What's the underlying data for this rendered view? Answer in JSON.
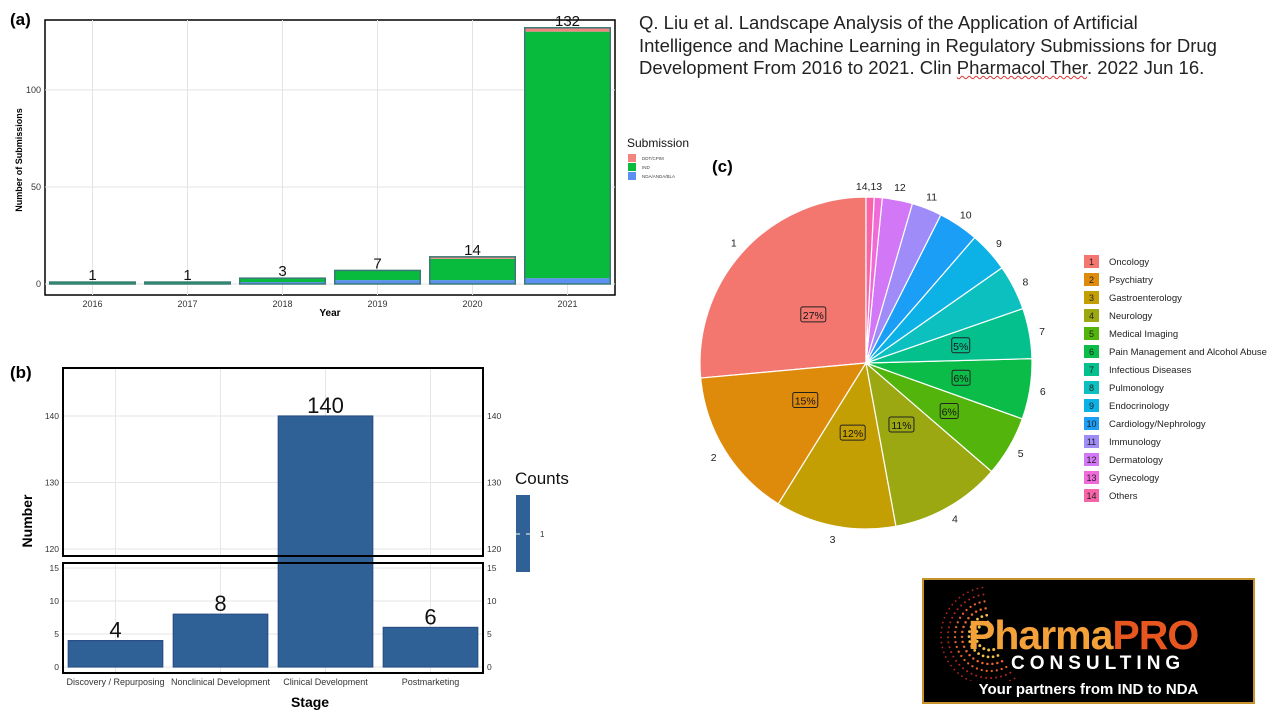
{
  "citation": {
    "line1": "Q. Liu et al. Landscape Analysis of the Application of Artificial",
    "line2": "Intelligence and Machine Learning in Regulatory Submissions for Drug",
    "line3a": "Development From 2016 to 2021. Clin ",
    "line3b": "Pharmacol Ther",
    "line3c": ". 2022 Jun 16."
  },
  "logo": {
    "pharma": "Pharma",
    "pro": "PRO",
    "consulting": "CONSULTING",
    "tagline": "Your partners from IND to NDA"
  },
  "colors": {
    "ddt": "#f28482",
    "ind": "#08bb3c",
    "nda": "#5b8ff0",
    "bar_b": "#2f6096"
  },
  "chart_data": [
    {
      "id": "a",
      "panel_label": "(a)",
      "type": "bar",
      "stacked": true,
      "categories": [
        "2016",
        "2017",
        "2018",
        "2019",
        "2020",
        "2021"
      ],
      "series": [
        {
          "name": "DDT/CPIM",
          "values": [
            0,
            0,
            0,
            0,
            1,
            2
          ]
        },
        {
          "name": "IND",
          "values": [
            1,
            1,
            2,
            5,
            11,
            127
          ]
        },
        {
          "name": "NDA/ANDA/BLA",
          "values": [
            0,
            0,
            1,
            2,
            2,
            3
          ]
        }
      ],
      "totals": [
        1,
        1,
        3,
        7,
        14,
        132
      ],
      "xlabel": "Year",
      "ylabel": "Number of Submissions",
      "yticks": [
        0,
        50,
        100
      ],
      "ylim": [
        0,
        137
      ],
      "legend_title": "Submission",
      "legend_position": "right",
      "grid": true
    },
    {
      "id": "b",
      "panel_label": "(b)",
      "type": "bar",
      "categories": [
        "Discovery / Repurposing",
        "Nonclinical Development",
        "Clinical Development",
        "Postmarketing"
      ],
      "values": [
        4,
        8,
        140,
        6
      ],
      "xlabel": "Stage",
      "ylabel": "Number",
      "broken_axis": true,
      "lower_ylim": [
        0,
        15
      ],
      "upper_ylim": [
        119,
        142
      ],
      "lower_yticks": [
        0,
        5,
        10,
        15
      ],
      "upper_yticks": [
        120,
        130,
        140
      ],
      "legend_title": "Counts",
      "legend_ticks": [
        "1"
      ],
      "grid": true
    },
    {
      "id": "c",
      "panel_label": "(c)",
      "type": "pie",
      "slices": [
        {
          "num": "1",
          "label": "Oncology",
          "value": 27,
          "pct": "27%",
          "color": "#f3776f"
        },
        {
          "num": "2",
          "label": "Psychiatry",
          "value": 15,
          "pct": "15%",
          "color": "#de8a0b"
        },
        {
          "num": "3",
          "label": "Gastroenterology",
          "value": 12,
          "pct": "12%",
          "color": "#c39f04"
        },
        {
          "num": "4",
          "label": "Neurology",
          "value": 11,
          "pct": "11%",
          "color": "#9ca812"
        },
        {
          "num": "5",
          "label": "Medical Imaging",
          "value": 6,
          "pct": "6%",
          "color": "#53b40c"
        },
        {
          "num": "6",
          "label": "Pain Management and Alcohol Abuse",
          "value": 6,
          "pct": "6%",
          "color": "#0bbc49"
        },
        {
          "num": "7",
          "label": "Infectious Diseases",
          "value": 5,
          "pct": "5%",
          "color": "#04c08d"
        },
        {
          "num": "8",
          "label": "Pulmonology",
          "value": 4.5,
          "pct": "",
          "color": "#0cc0c0"
        },
        {
          "num": "9",
          "label": "Endocrinology",
          "value": 4,
          "pct": "",
          "color": "#0cb2e6"
        },
        {
          "num": "10",
          "label": "Cardiology/Nephrology",
          "value": 4,
          "pct": "",
          "color": "#1b9ef5"
        },
        {
          "num": "11",
          "label": "Immunology",
          "value": 3,
          "pct": "",
          "color": "#9f8cf8"
        },
        {
          "num": "12",
          "label": "Dermatology",
          "value": 3,
          "pct": "",
          "color": "#d277f6"
        },
        {
          "num": "13",
          "label": "Gynecology",
          "value": 0.8,
          "pct": "",
          "color": "#f16ad9"
        },
        {
          "num": "14",
          "label": "Others",
          "value": 0.8,
          "pct": "",
          "color": "#f964a8"
        }
      ],
      "outer_label_merged": "14,13",
      "legend_position": "right"
    }
  ]
}
